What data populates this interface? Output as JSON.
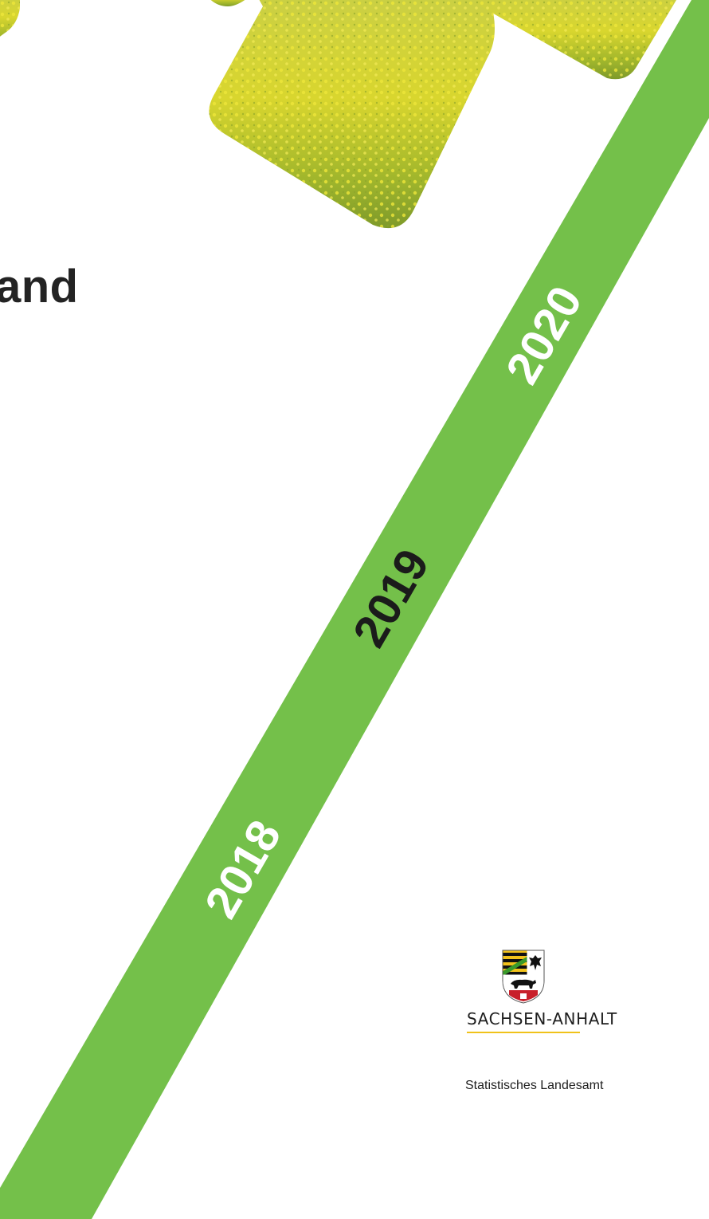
{
  "cover": {
    "title_fragment": "and",
    "years": [
      "2018",
      "2019",
      "2020"
    ],
    "accent_color": "#74c04a",
    "photo_color": "#b7c82a"
  },
  "footer": {
    "state_name": "SACHSEN-ANHALT",
    "office": "Statistisches Landesamt"
  },
  "icons": {
    "crest": "coat-of-arms-icon"
  }
}
